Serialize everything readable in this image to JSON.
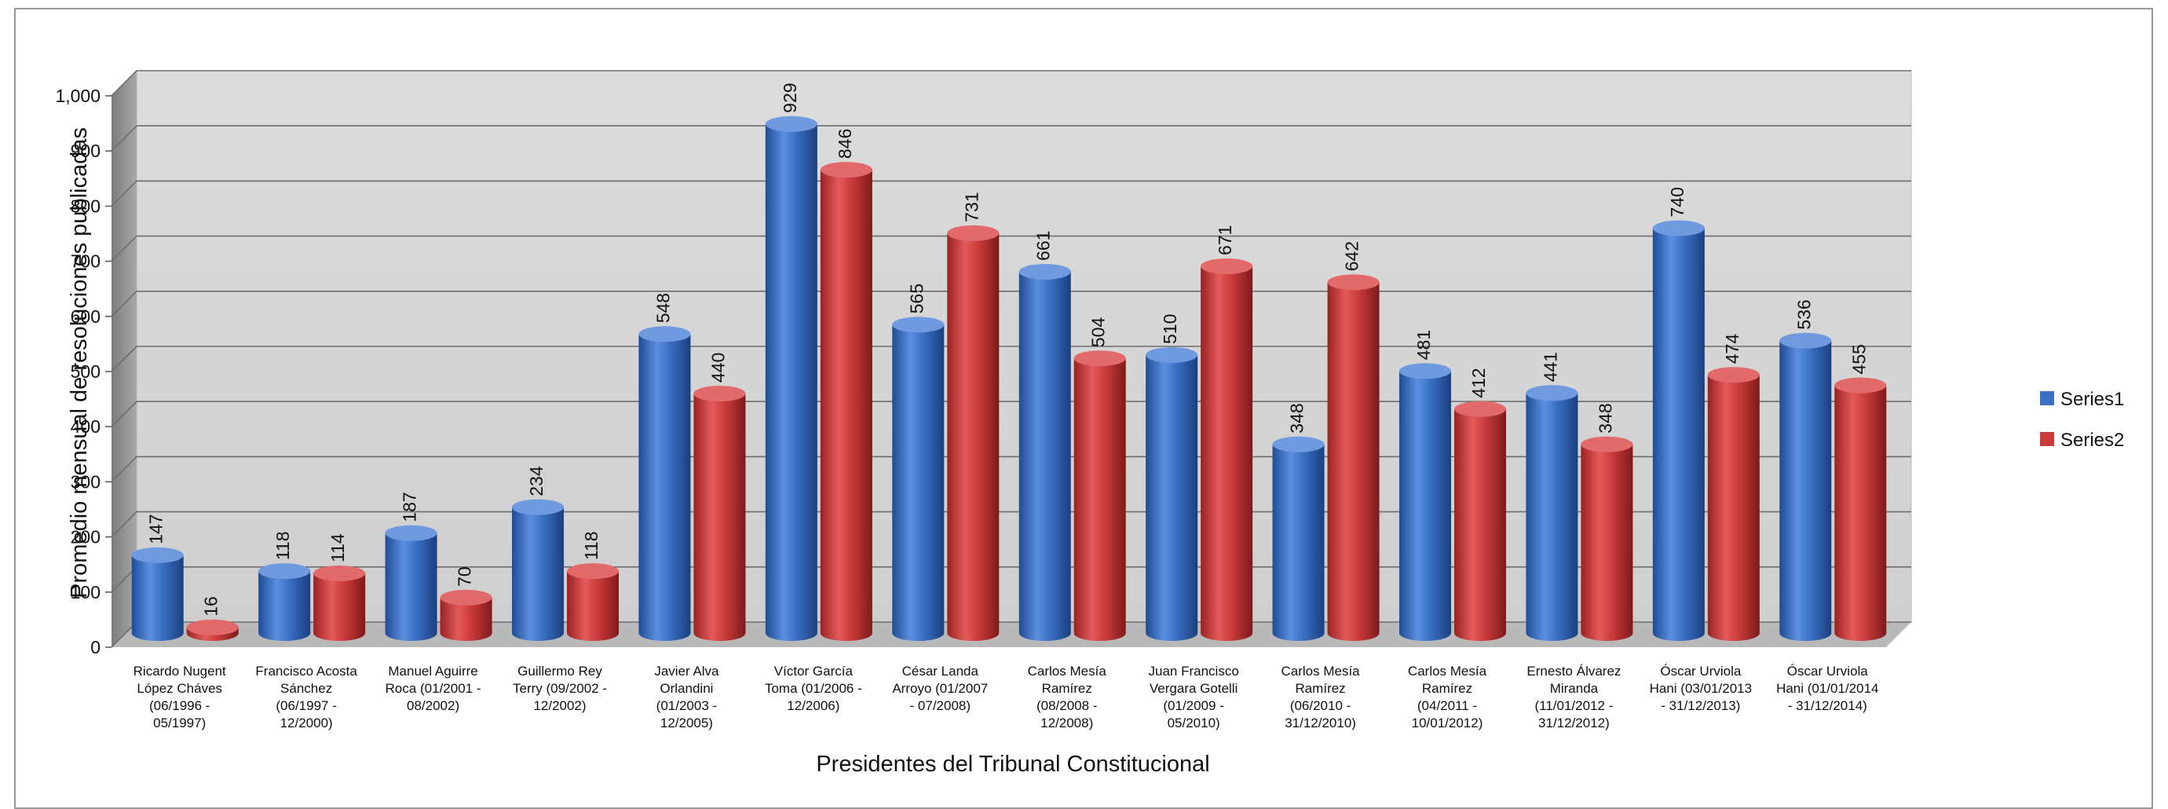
{
  "chart_data": {
    "type": "bar",
    "title": "",
    "xlabel": "Presidentes del Tribunal Constitucional",
    "ylabel": "Promedio mensual de resoluciones publicadas",
    "ylim": [
      0,
      1000
    ],
    "yticks": [
      "0",
      "100",
      "200",
      "300",
      "400",
      "500",
      "600",
      "700",
      "800",
      "900",
      "1,000"
    ],
    "grid": true,
    "legend_position": "right",
    "categories": [
      [
        "Ricardo Nugent",
        "López Cháves",
        "(06/1996 -",
        "05/1997)"
      ],
      [
        "Francisco Acosta",
        "Sánchez",
        "(06/1997 -",
        "12/2000)"
      ],
      [
        "Manuel Aguirre",
        "Roca  (01/2001 -",
        "08/2002)"
      ],
      [
        "Guillermo Rey",
        "Terry  (09/2002 -",
        "12/2002)"
      ],
      [
        "Javier Alva",
        "Orlandini",
        "(01/2003 -",
        "12/2005)"
      ],
      [
        "Víctor García",
        "Toma  (01/2006 -",
        "12/2006)"
      ],
      [
        "César Landa",
        "Arroyo  (01/2007",
        "- 07/2008)"
      ],
      [
        "Carlos Mesía",
        "Ramírez",
        "(08/2008 -",
        "12/2008)"
      ],
      [
        "Juan Francisco",
        "Vergara Gotelli",
        "(01/2009 -",
        "05/2010)"
      ],
      [
        "Carlos Mesía",
        "Ramírez",
        "(06/2010 -",
        "31/12/2010)"
      ],
      [
        "Carlos Mesía",
        "Ramírez",
        "(04/2011 -",
        "10/01/2012)"
      ],
      [
        "Ernesto Álvarez",
        "Miranda",
        "(11/01/2012 -",
        "31/12/2012)"
      ],
      [
        "Óscar Urviola",
        "Hani (03/01/2013",
        "- 31/12/2013)"
      ],
      [
        "Óscar Urviola",
        "Hani (01/01/2014",
        "- 31/12/2014)"
      ]
    ],
    "series": [
      {
        "name": "Series1",
        "color": "#3a6fc4",
        "values": [
          147,
          118,
          187,
          234,
          548,
          929,
          565,
          661,
          510,
          348,
          481,
          441,
          740,
          536
        ]
      },
      {
        "name": "Series2",
        "color": "#c93b3b",
        "values": [
          16,
          114,
          70,
          118,
          440,
          846,
          731,
          504,
          671,
          642,
          412,
          348,
          474,
          455
        ]
      }
    ]
  }
}
